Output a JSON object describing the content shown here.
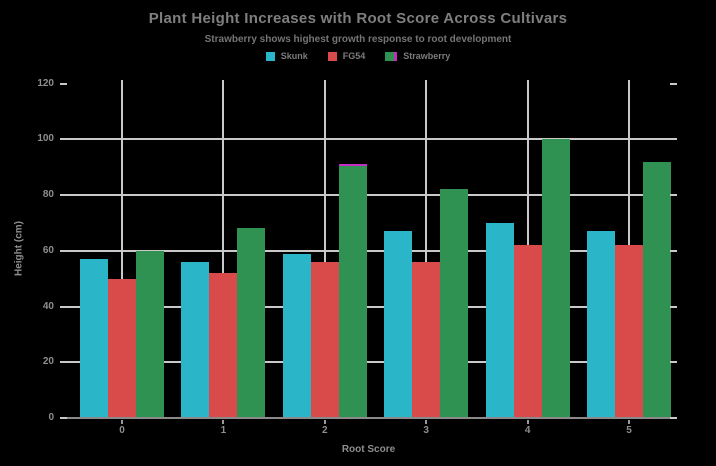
{
  "title": "Plant Height Increases with Root Score Across Cultivars",
  "subtitle": "Strawberry shows highest growth response to root development",
  "colors": {
    "background": "#000000",
    "title": "#7f7f7f",
    "subtitle": "#757575",
    "tick_label": "#8e8e8e",
    "grid": "#c9c9c9",
    "axis_line": "#8a8a8a",
    "skunk": "#2ab5c8",
    "fg54": "#d94b4b",
    "strawberry": "#2f9152",
    "highlight_edge": "#c22ec2"
  },
  "chart_data": {
    "type": "bar",
    "title": "Plant Height Increases with Root Score Across Cultivars",
    "subtitle": "Strawberry shows highest growth response to root development",
    "categories": [
      "0",
      "1",
      "2",
      "3",
      "4",
      "5"
    ],
    "series": [
      {
        "name": "Skunk",
        "color": "#2ab5c8",
        "values": [
          57,
          56,
          59,
          67,
          70,
          67
        ]
      },
      {
        "name": "FG54",
        "color": "#d94b4b",
        "values": [
          50,
          52,
          56,
          56,
          62,
          62
        ]
      },
      {
        "name": "Strawberry",
        "color": "#2f9152",
        "values": [
          60,
          68,
          91,
          82,
          100,
          92
        ],
        "highlight": {
          "index": 2,
          "edge_color": "#c22ec2"
        }
      }
    ],
    "xlabel": "Root Score",
    "ylabel": "Height (cm)",
    "yticks": [
      0,
      20,
      40,
      60,
      80,
      100,
      120
    ],
    "ylim": [
      0,
      120
    ],
    "grid": true,
    "gridlines_horizontal_at": [
      20,
      40,
      60,
      80,
      100
    ],
    "gridlines_vertical": "at each category center",
    "legend_position": "top-center",
    "background": "black"
  }
}
